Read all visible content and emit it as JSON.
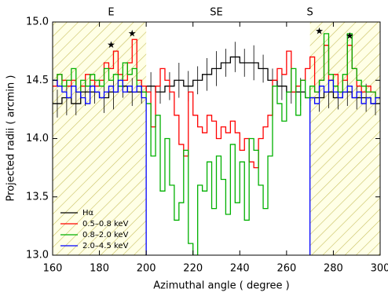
{
  "chart_data": {
    "type": "step",
    "xlabel": "Azimuthal angle ( degree )",
    "ylabel": "Projected radii ( arcmin )",
    "xlim": [
      160,
      300
    ],
    "xticks": [
      160,
      180,
      200,
      220,
      240,
      260,
      280,
      300
    ],
    "ylim": [
      13,
      15
    ],
    "yticks": [
      {
        "value": 13,
        "label": "13.0"
      },
      13.5,
      {
        "value": 14,
        "label": "14.0"
      },
      14.5,
      {
        "value": 15,
        "label": "15.0"
      }
    ],
    "shaded_ranges": [
      [
        160,
        200
      ],
      [
        270,
        300
      ]
    ],
    "legend": "lower left",
    "top_labels": [
      {
        "text": "E",
        "x": 185
      },
      {
        "text": "SE",
        "x": 230
      },
      {
        "text": "S",
        "x": 270
      }
    ],
    "annotations": [
      {
        "text": "★",
        "x": 185,
        "y": 14.8
      },
      {
        "text": "★",
        "x": 194,
        "y": 14.9
      },
      {
        "text": "★",
        "x": 274,
        "y": 14.92
      },
      {
        "text": "★",
        "x": 287,
        "y": 14.88
      }
    ],
    "series": [
      {
        "name": "Hα",
        "color": "#000000",
        "x": [
          160,
          164,
          168,
          172,
          176,
          180,
          184,
          188,
          192,
          196,
          200,
          204,
          208,
          212,
          216,
          220,
          224,
          228,
          232,
          236,
          240,
          244,
          248,
          252,
          256,
          260,
          264,
          268,
          272,
          276,
          280,
          284,
          288,
          292,
          296
        ],
        "values": [
          14.3,
          14.35,
          14.3,
          14.4,
          14.4,
          14.35,
          14.4,
          14.45,
          14.4,
          14.4,
          14.45,
          14.4,
          14.45,
          14.5,
          14.45,
          14.5,
          14.55,
          14.6,
          14.65,
          14.7,
          14.65,
          14.65,
          14.6,
          14.5,
          14.45,
          14.4,
          14.4,
          14.35,
          14.35,
          14.4,
          14.35,
          14.4,
          14.35,
          14.35,
          14.3
        ],
        "errors": [
          0.12,
          0.15,
          0.1,
          0.12,
          0.1,
          0.13,
          0.15,
          0.1,
          0.12,
          0.1,
          0.12,
          0.1,
          0.12,
          0.15,
          0.13,
          0.12,
          0.14,
          0.15,
          0.12,
          0.13,
          0.12,
          0.15,
          0.12,
          0.1,
          0.12,
          0.1,
          0.12,
          0.1,
          0.12,
          0.14,
          0.1,
          0.12,
          0.1,
          0.12,
          0.1
        ]
      },
      {
        "name": "0.5–0.8 keV",
        "color": "#ff0000",
        "x": [
          160,
          162,
          164,
          166,
          168,
          170,
          172,
          174,
          176,
          178,
          180,
          182,
          184,
          186,
          188,
          190,
          192,
          194,
          196,
          198,
          200,
          202,
          204,
          206,
          208,
          210,
          212,
          214,
          216,
          218,
          220,
          222,
          224,
          226,
          228,
          230,
          232,
          234,
          236,
          238,
          240,
          242,
          244,
          246,
          248,
          250,
          252,
          254,
          256,
          258,
          260,
          262,
          264,
          266,
          268,
          270,
          272,
          274,
          276,
          278,
          280,
          282,
          284,
          286,
          288,
          290,
          292,
          294,
          296,
          298
        ],
        "values": [
          14.45,
          14.55,
          14.5,
          14.45,
          14.5,
          14.4,
          14.45,
          14.55,
          14.5,
          14.45,
          14.5,
          14.65,
          14.6,
          14.75,
          14.55,
          14.5,
          14.65,
          14.85,
          14.5,
          14.45,
          14.4,
          14.1,
          14.45,
          14.6,
          14.5,
          14.4,
          14.2,
          13.95,
          13.85,
          14.4,
          14.2,
          14.1,
          14.05,
          14.2,
          14.15,
          14.0,
          14.1,
          14.05,
          14.15,
          14.05,
          13.9,
          14.0,
          13.8,
          13.75,
          14.0,
          14.1,
          14.2,
          14.5,
          14.6,
          14.55,
          14.75,
          14.4,
          14.45,
          14.5,
          14.6,
          14.7,
          14.4,
          14.5,
          14.8,
          14.5,
          14.55,
          14.4,
          14.5,
          14.8,
          14.6,
          14.45,
          14.4,
          14.45,
          14.4,
          14.35
        ]
      },
      {
        "name": "0.8–2.0 keV",
        "color": "#00b000",
        "x": [
          160,
          162,
          164,
          166,
          168,
          170,
          172,
          174,
          176,
          178,
          180,
          182,
          184,
          186,
          188,
          190,
          192,
          194,
          196,
          198,
          200,
          202,
          204,
          206,
          208,
          210,
          212,
          214,
          216,
          218,
          220,
          222,
          224,
          226,
          228,
          230,
          232,
          234,
          236,
          238,
          240,
          242,
          244,
          246,
          248,
          250,
          252,
          254,
          256,
          258,
          260,
          262,
          264,
          266,
          268,
          270,
          272,
          274,
          276,
          278,
          280,
          282,
          284,
          286,
          288,
          290,
          292,
          294,
          296,
          298
        ],
        "values": [
          14.5,
          14.55,
          14.45,
          14.5,
          14.6,
          14.4,
          14.5,
          14.45,
          14.55,
          14.5,
          14.45,
          14.6,
          14.5,
          14.55,
          14.45,
          14.65,
          14.55,
          14.6,
          14.45,
          14.4,
          14.3,
          13.85,
          14.2,
          13.55,
          14.0,
          13.6,
          13.3,
          13.45,
          13.9,
          13.1,
          13.0,
          13.6,
          13.55,
          13.8,
          13.4,
          13.85,
          13.65,
          13.35,
          13.95,
          13.45,
          13.8,
          13.3,
          14.0,
          13.9,
          13.6,
          13.4,
          13.85,
          14.45,
          14.3,
          14.15,
          14.4,
          14.6,
          14.2,
          14.5,
          14.35,
          14.45,
          14.4,
          14.5,
          14.9,
          14.55,
          14.45,
          14.4,
          14.55,
          14.9,
          14.6,
          14.5,
          14.45,
          14.4,
          14.4,
          14.35
        ]
      },
      {
        "name": "2.0–4.5 keV",
        "color": "#0000ff",
        "x": [
          160,
          162,
          164,
          166,
          168,
          170,
          172,
          174,
          176,
          178,
          180,
          182,
          184,
          186,
          188,
          190,
          192,
          194,
          196,
          198,
          200,
          202,
          204,
          206,
          208,
          210,
          212,
          214,
          216,
          218,
          220,
          222,
          224,
          226,
          228,
          230,
          232,
          234,
          236,
          238,
          240,
          242,
          244,
          246,
          248,
          250,
          252,
          254,
          256,
          258,
          260,
          262,
          264,
          266,
          268,
          270,
          272,
          274,
          276,
          278,
          280,
          282,
          284,
          286,
          288,
          290,
          292,
          294,
          296,
          298
        ],
        "values": [
          14.5,
          14.45,
          14.4,
          14.35,
          14.45,
          14.4,
          14.35,
          14.3,
          14.45,
          14.4,
          14.35,
          14.4,
          14.45,
          14.4,
          14.5,
          14.4,
          14.45,
          14.4,
          14.45,
          14.35,
          null,
          null,
          null,
          null,
          null,
          null,
          null,
          null,
          null,
          null,
          null,
          null,
          null,
          null,
          null,
          null,
          null,
          null,
          null,
          null,
          null,
          null,
          null,
          null,
          null,
          null,
          null,
          null,
          null,
          null,
          null,
          null,
          null,
          null,
          null,
          14.35,
          14.3,
          14.45,
          14.4,
          14.5,
          14.4,
          14.35,
          14.4,
          14.45,
          14.35,
          14.4,
          14.3,
          14.35,
          14.3,
          14.35
        ]
      }
    ]
  }
}
